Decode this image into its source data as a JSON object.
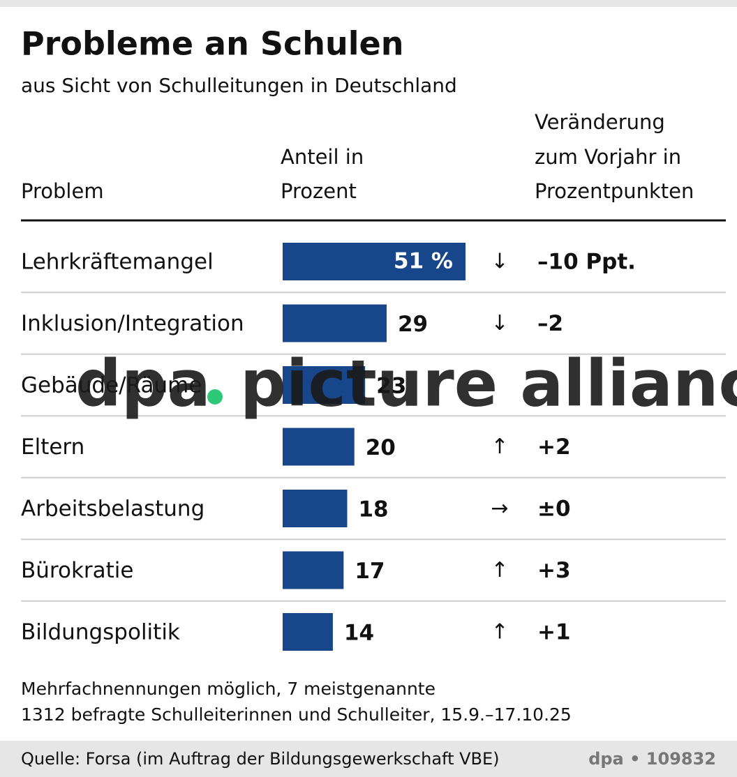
{
  "chart_data": {
    "type": "bar",
    "title": "Probleme an Schulen",
    "subtitle": "aus Sicht von Schulleitungen in Deutschland",
    "headers": {
      "category": "Problem",
      "share": [
        "Anteil in",
        "Prozent"
      ],
      "change": [
        "Veränderung",
        "zum Vorjahr in",
        "Prozentpunkten"
      ]
    },
    "categories": [
      "Lehrkräftemangel",
      "Inklusion/Integration",
      "Gebäude/Räume",
      "Eltern",
      "Arbeitsbelastung",
      "Bürokratie",
      "Bildungspolitik"
    ],
    "values": [
      51,
      29,
      23,
      20,
      18,
      17,
      14
    ],
    "value_labels": [
      "51 %",
      null,
      null,
      null,
      null,
      null,
      null
    ],
    "color": "#18468a",
    "arrows": [
      "↓",
      "↓",
      null,
      "↑",
      "→",
      "↑",
      "↑"
    ],
    "changes": {
      "values": [
        -10,
        -2,
        null,
        2,
        0,
        3,
        1
      ],
      "value_labels": [
        "–10 Ppt.",
        "–2",
        null,
        "+2",
        "±0",
        "+3",
        "+1"
      ]
    },
    "notes": [
      "Mehrfachnennungen möglich, 7 meistgenannte",
      "1312 befragte Schulleiterinnen und Schulleiter, 15.9.–17.10.25"
    ],
    "source": "Quelle: Forsa (im Auftrag der Bildungsgewerkschaft VBE)",
    "credit": "dpa • 109832",
    "watermark": {
      "left": "dpa",
      "right": "picture alliance"
    }
  }
}
